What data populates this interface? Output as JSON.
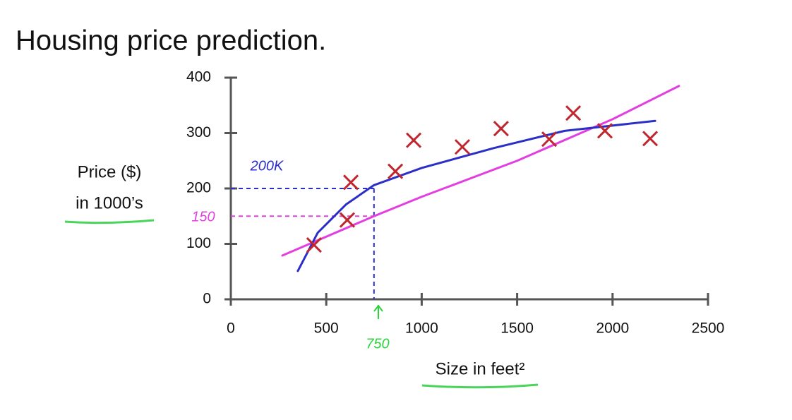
{
  "chart_data": {
    "type": "scatter",
    "title": "Housing price prediction.",
    "xlabel": "Size in feet²",
    "ylabel": [
      "Price ($)",
      "in 1000’s"
    ],
    "xlim": [
      0,
      2500
    ],
    "xticks": [
      0,
      500,
      1000,
      1500,
      2000,
      2500
    ],
    "ylim": [
      0,
      400
    ],
    "yticks": [
      0,
      100,
      200,
      300,
      400
    ],
    "points": {
      "color": "#c0262d",
      "x": [
        436,
        629,
        610,
        862,
        958,
        1213,
        1416,
        1668,
        1794,
        1960,
        2197
      ],
      "y": [
        98,
        211,
        143,
        231,
        287,
        275,
        308,
        289,
        336,
        304,
        290
      ]
    },
    "fits": [
      {
        "color": "#e23ee0",
        "x": [
          270,
          750,
          1000,
          1500,
          2000,
          2348
        ],
        "y": [
          79,
          150,
          185,
          250,
          325,
          385
        ]
      },
      {
        "color": "#2b2fc8",
        "x": [
          351,
          455,
          603,
          750,
          1000,
          1379,
          1749,
          2223
        ],
        "y": [
          51,
          120,
          171,
          206,
          237,
          273,
          304,
          322
        ]
      }
    ],
    "annotations": [
      {
        "text": "200K",
        "x": 750,
        "y": 200,
        "color": "#2b2fc8"
      },
      {
        "text": "150",
        "x": 750,
        "y": 150,
        "color": "#e23ee0"
      },
      {
        "text": "750",
        "x": 750,
        "color": "#2bd43a"
      }
    ]
  }
}
